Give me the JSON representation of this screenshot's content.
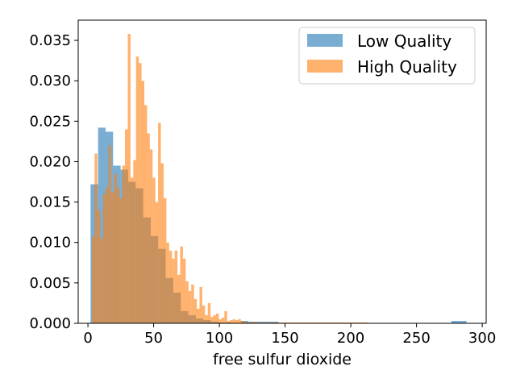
{
  "chart_data": {
    "type": "histogram",
    "xlabel": "free sulfur dioxide",
    "ylabel": "",
    "title": "",
    "xlim": [
      -7.4,
      303
    ],
    "ylim": [
      0,
      0.0375
    ],
    "xticks": [
      0,
      50,
      100,
      150,
      200,
      250,
      300
    ],
    "yticks": [
      0.0,
      0.005,
      0.01,
      0.015,
      0.02,
      0.025,
      0.03,
      0.035
    ],
    "xtick_labels": [
      "0",
      "50",
      "100",
      "150",
      "200",
      "250",
      "300"
    ],
    "ytick_labels": [
      "0.000",
      "0.005",
      "0.010",
      "0.015",
      "0.020",
      "0.025",
      "0.030",
      "0.035"
    ],
    "grid": false,
    "legend_position": "top-right",
    "series": [
      {
        "name": "Low Quality",
        "color": "#1f77b4",
        "alpha": 0.6,
        "bin_start": 2,
        "bin_width": 5.72,
        "values": [
          0.0172,
          0.0242,
          0.0237,
          0.0195,
          0.019,
          0.0175,
          0.0167,
          0.0131,
          0.0108,
          0.0092,
          0.0056,
          0.0038,
          0.0015,
          0.001,
          0.0006,
          0.0004,
          0.0002,
          0.0001,
          0.0001,
          0.0,
          0.0003,
          0.0002,
          0.0002,
          0.0002,
          0.0002,
          0,
          0,
          0,
          0,
          0,
          0,
          0,
          0,
          0,
          0,
          0,
          0,
          0,
          0,
          0,
          0,
          0,
          0,
          0,
          0,
          0,
          0,
          0,
          0.0003,
          0.0003
        ]
      },
      {
        "name": "High Quality",
        "color": "#ff7f0e",
        "alpha": 0.6,
        "bin_start": 3,
        "bin_width": 2.1,
        "values": [
          0.0108,
          0.021,
          0.014,
          0.0105,
          0.016,
          0.0168,
          0.022,
          0.0162,
          0.0185,
          0.0168,
          0.0155,
          0.0195,
          0.024,
          0.0358,
          0.018,
          0.0202,
          0.033,
          0.0322,
          0.03,
          0.027,
          0.0235,
          0.0215,
          0.018,
          0.015,
          0.0248,
          0.0198,
          0.0155,
          0.01,
          0.009,
          0.008,
          0.009,
          0.006,
          0.0095,
          0.008,
          0.0052,
          0.004,
          0.0048,
          0.003,
          0.0018,
          0.0045,
          0.0022,
          0.001,
          0.0025,
          0.0008,
          0.001,
          0.0012,
          0.0005,
          0.0007,
          0.0015,
          0.0003,
          0.0004,
          0.0005,
          0.0004,
          0.0005,
          0.0003,
          0.0002,
          0.0001,
          0.0001,
          0.0002,
          0.0001,
          0.0001,
          0.0001,
          0.0001,
          0.0001,
          0.0001,
          0.0001,
          0.0001,
          0.0001,
          0.0001,
          0.0001,
          0.0001,
          0.0001,
          0.0001,
          0.0001,
          0.0001,
          0.0001,
          0.0001,
          0.0001,
          0.0001,
          0.0001,
          0.0001,
          0.0001,
          0.0001,
          0.0001,
          0.0001,
          0.0001,
          0.0001,
          0.0001,
          0.0001,
          0.0001,
          0.0001,
          0.0001,
          0.0001,
          0.0001,
          0.0001,
          0.0001,
          0.0001,
          0.0001,
          0.0001,
          0.0001
        ]
      }
    ]
  }
}
